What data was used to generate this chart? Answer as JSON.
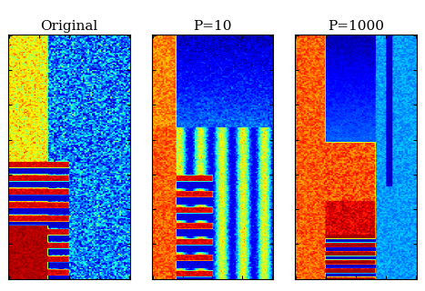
{
  "titles": [
    "Original",
    "P=10",
    "P=1000"
  ],
  "fig_width": 4.67,
  "fig_height": 3.2,
  "dpi": 100,
  "cmap": "jet",
  "seed": 42
}
